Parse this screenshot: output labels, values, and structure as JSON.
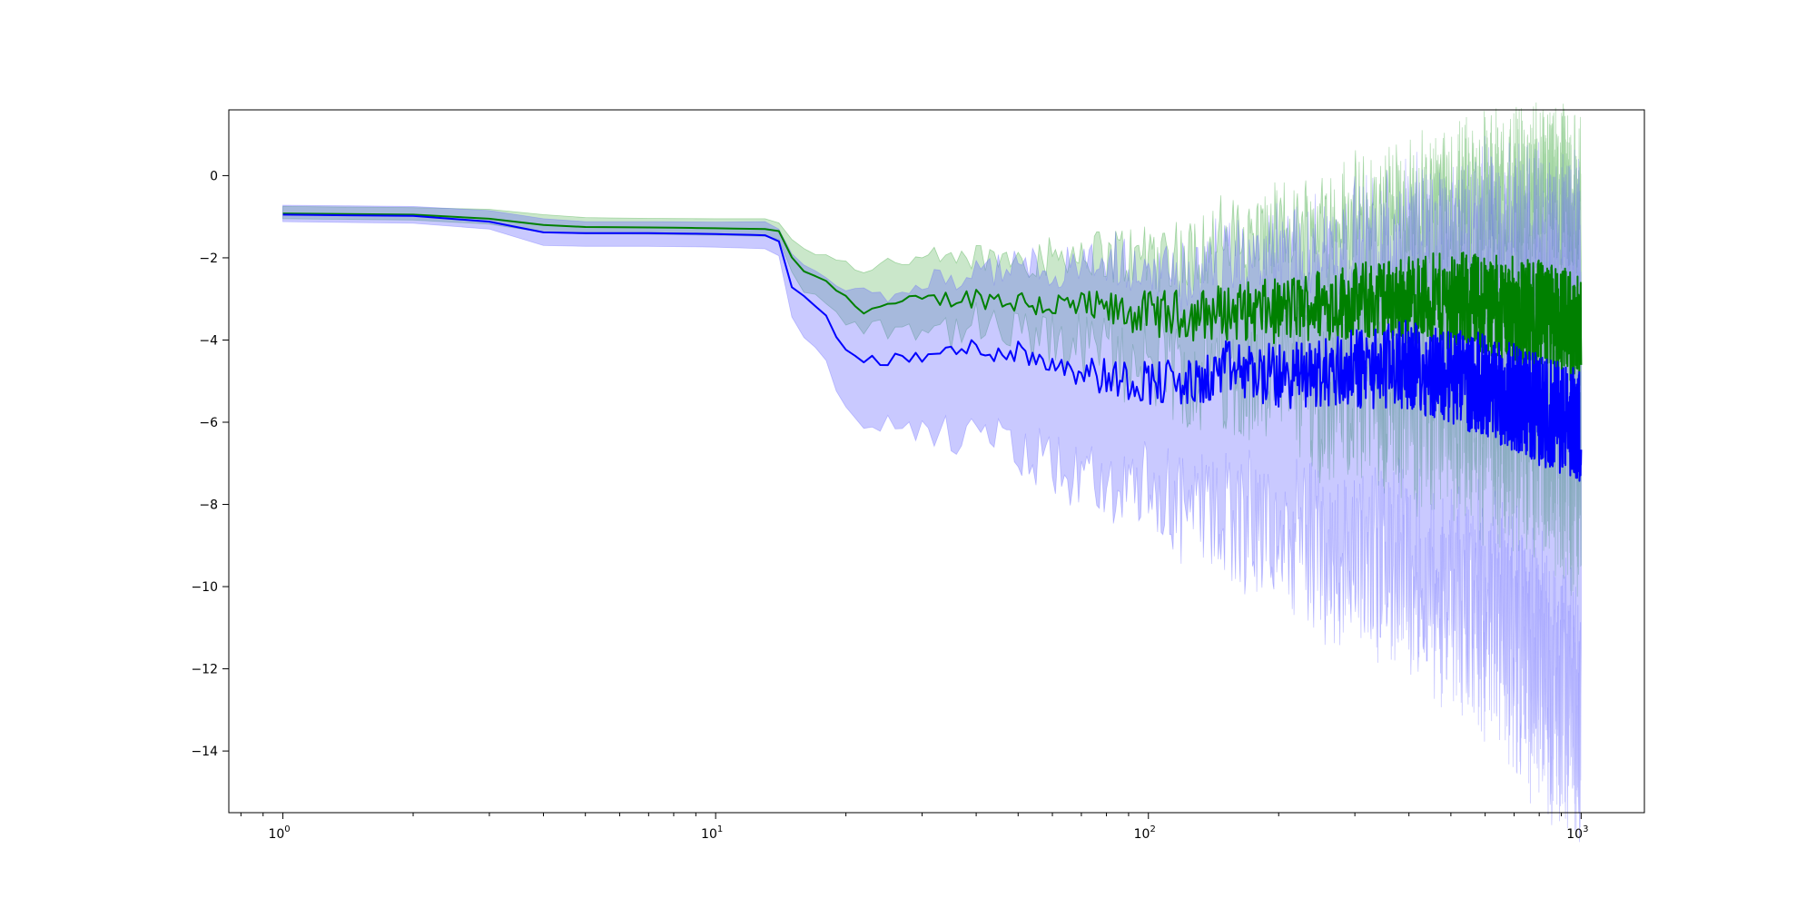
{
  "chart_data": {
    "type": "line",
    "title": "",
    "xlabel": "",
    "ylabel": "",
    "x_scale": "log",
    "xlim": [
      0.75,
      1400
    ],
    "ylim": [
      -15.5,
      1.6
    ],
    "grid": false,
    "legend": "none",
    "x_ticks": [
      {
        "value": 1,
        "base": "10",
        "exp": "0"
      },
      {
        "value": 10,
        "base": "10",
        "exp": "1"
      },
      {
        "value": 100,
        "base": "10",
        "exp": "2"
      },
      {
        "value": 1000,
        "base": "10",
        "exp": "3"
      }
    ],
    "y_ticks": [
      {
        "value": 0,
        "label": "0"
      },
      {
        "value": -2,
        "label": "−2"
      },
      {
        "value": -4,
        "label": "−4"
      },
      {
        "value": -6,
        "label": "−6"
      },
      {
        "value": -8,
        "label": "−8"
      },
      {
        "value": -10,
        "label": "−10"
      },
      {
        "value": -12,
        "label": "−12"
      },
      {
        "value": -14,
        "label": "−14"
      }
    ],
    "series": [
      {
        "color": "#008000",
        "band_color": "#2ca02c",
        "x": [
          1,
          2,
          3,
          4,
          5,
          7,
          10,
          13,
          14,
          15,
          16,
          18,
          20,
          22,
          25,
          30,
          40,
          50,
          60,
          80,
          100,
          130,
          150,
          200,
          250,
          300,
          400,
          500,
          600,
          700,
          800,
          900,
          1000
        ],
        "y": [
          -0.92,
          -0.95,
          -1.05,
          -1.2,
          -1.25,
          -1.26,
          -1.28,
          -1.3,
          -1.35,
          -2.0,
          -2.35,
          -2.55,
          -3.0,
          -3.25,
          -3.15,
          -3.05,
          -2.95,
          -3.05,
          -3.15,
          -3.3,
          -3.35,
          -3.4,
          -3.3,
          -3.3,
          -3.1,
          -3.05,
          -3.0,
          -3.05,
          -3.1,
          -3.3,
          -3.4,
          -3.55,
          -3.8
        ],
        "upper": [
          -0.75,
          -0.78,
          -0.82,
          -0.95,
          -1.02,
          -1.04,
          -1.05,
          -1.05,
          -1.15,
          -1.55,
          -1.8,
          -1.95,
          -2.1,
          -2.25,
          -2.1,
          -2.1,
          -2.0,
          -1.95,
          -1.95,
          -1.95,
          -1.95,
          -1.85,
          -1.6,
          -1.4,
          -1.2,
          -1.05,
          -0.8,
          -0.6,
          -0.5,
          -0.45,
          -0.45,
          -0.5,
          -0.6
        ],
        "lower": [
          -1.05,
          -1.08,
          -1.18,
          -1.38,
          -1.42,
          -1.43,
          -1.45,
          -1.48,
          -1.55,
          -2.35,
          -2.8,
          -3.05,
          -3.5,
          -3.7,
          -3.7,
          -3.7,
          -3.75,
          -3.9,
          -4.05,
          -4.35,
          -4.6,
          -4.85,
          -4.9,
          -5.1,
          -5.2,
          -5.3,
          -5.4,
          -5.6,
          -5.8,
          -6.1,
          -6.4,
          -6.8,
          -7.2
        ]
      },
      {
        "color": "#0000ff",
        "band_color": "#6464ff",
        "x": [
          1,
          2,
          3,
          4,
          5,
          7,
          10,
          13,
          14,
          15,
          16,
          18,
          20,
          22,
          25,
          30,
          40,
          50,
          60,
          80,
          100,
          130,
          150,
          200,
          250,
          300,
          400,
          500,
          600,
          700,
          800,
          900,
          1000
        ],
        "y": [
          -0.95,
          -0.98,
          -1.12,
          -1.38,
          -1.4,
          -1.4,
          -1.42,
          -1.45,
          -1.6,
          -2.7,
          -2.95,
          -3.4,
          -4.3,
          -4.45,
          -4.5,
          -4.4,
          -4.2,
          -4.3,
          -4.5,
          -4.9,
          -5.0,
          -5.1,
          -4.7,
          -4.9,
          -4.8,
          -4.7,
          -4.6,
          -4.9,
          -5.1,
          -5.4,
          -5.7,
          -5.9,
          -6.1
        ],
        "upper": [
          -0.72,
          -0.75,
          -0.85,
          -1.05,
          -1.12,
          -1.12,
          -1.13,
          -1.12,
          -1.3,
          -1.9,
          -2.15,
          -2.45,
          -2.75,
          -2.8,
          -2.9,
          -2.6,
          -2.4,
          -2.1,
          -2.2,
          -2.2,
          -2.3,
          -2.3,
          -2.1,
          -2.0,
          -1.8,
          -1.6,
          -1.4,
          -1.3,
          -1.2,
          -1.3,
          -1.4,
          -1.6,
          -1.6
        ],
        "lower": [
          -1.12,
          -1.16,
          -1.3,
          -1.7,
          -1.72,
          -1.72,
          -1.74,
          -1.78,
          -1.95,
          -3.4,
          -3.9,
          -4.6,
          -5.6,
          -5.9,
          -6.0,
          -6.3,
          -6.4,
          -6.7,
          -7.0,
          -7.6,
          -7.9,
          -8.2,
          -8.2,
          -8.9,
          -9.1,
          -9.3,
          -9.6,
          -10.3,
          -10.8,
          -11.3,
          -12.0,
          -12.6,
          -13.2
        ]
      }
    ]
  }
}
